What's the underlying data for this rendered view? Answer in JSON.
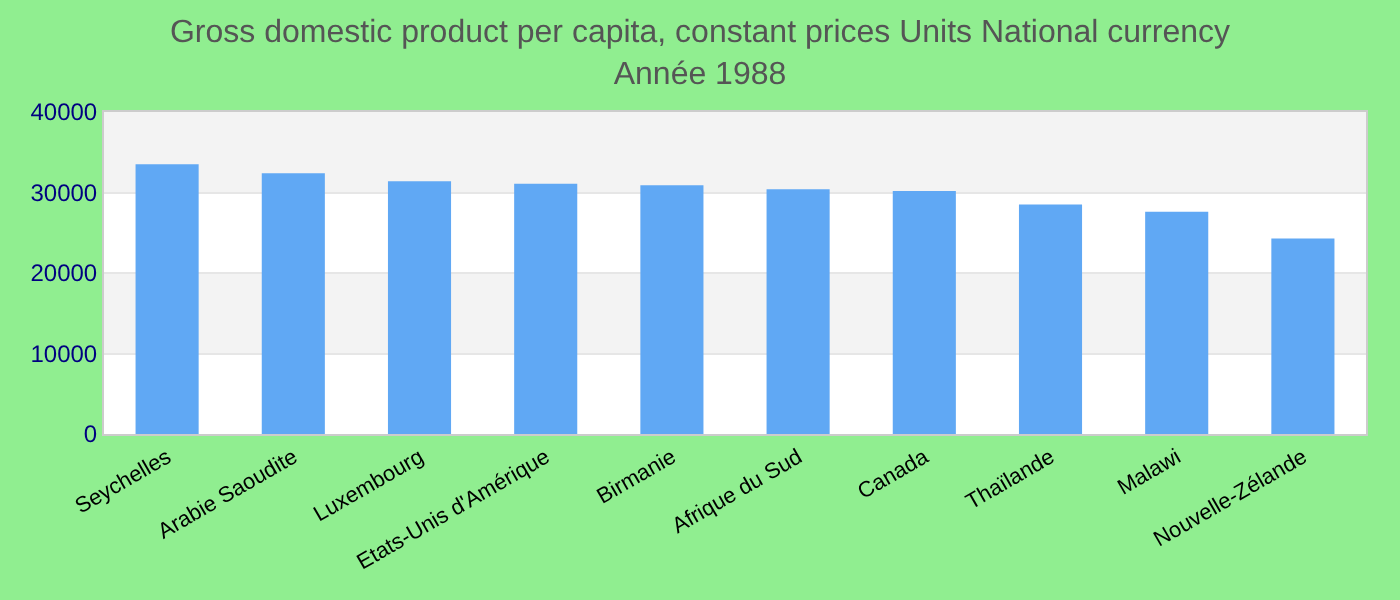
{
  "chart_data": {
    "type": "bar",
    "title": "Gross domestic product per capita, constant prices Units National currency",
    "subtitle": "Année 1988",
    "categories": [
      "Seychelles",
      "Arabie Saoudite",
      "Luxembourg",
      "Etats-Unis d'Amérique",
      "Birmanie",
      "Afrique du Sud",
      "Canada",
      "Thaïlande",
      "Malawi",
      "Nouvelle-Zélande"
    ],
    "values": [
      33500,
      32400,
      31400,
      31100,
      30900,
      30400,
      30200,
      28500,
      27600,
      24300
    ],
    "color": "#60a8f4",
    "ylim": [
      0,
      40000
    ],
    "yticks": [
      0,
      10000,
      20000,
      30000,
      40000
    ],
    "grid": "y"
  }
}
